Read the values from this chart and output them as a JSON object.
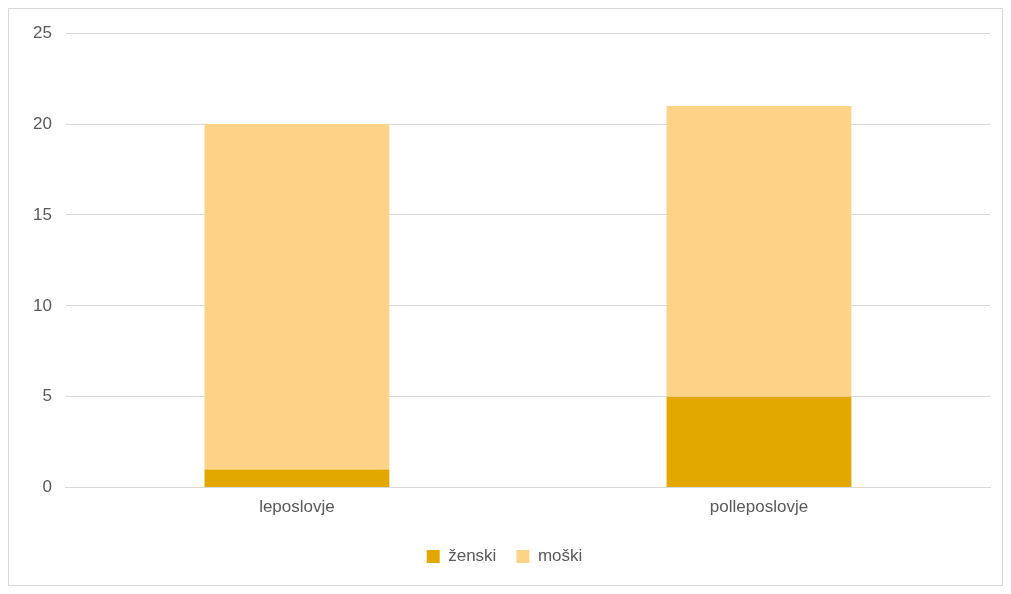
{
  "chart_data": {
    "type": "bar",
    "stacked": true,
    "categories": [
      "leposlovje",
      "polleposlovje"
    ],
    "series": [
      {
        "name": "ženski",
        "color": "#e2a800",
        "values": [
          1,
          5
        ]
      },
      {
        "name": "moški",
        "color": "#fdd388",
        "values": [
          19,
          16
        ]
      }
    ],
    "ylim": [
      0,
      25
    ],
    "yticks": [
      0,
      5,
      10,
      15,
      20,
      25
    ],
    "grid": "y",
    "legend": "bottom"
  }
}
